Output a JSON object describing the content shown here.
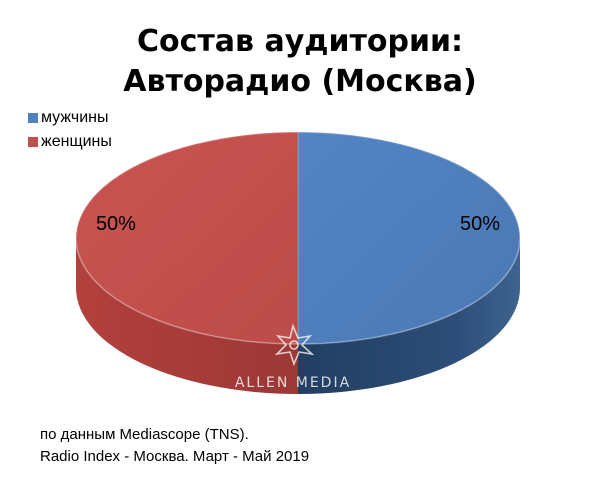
{
  "chart_data": {
    "type": "pie",
    "title_lines": [
      "Состав аудитории:",
      "Авторадио (Москва)"
    ],
    "categories": [
      "мужчины",
      "женщины"
    ],
    "values": [
      50,
      50
    ],
    "data_labels": [
      "50%",
      "50%"
    ],
    "colors": [
      "#4f81bd",
      "#c0504d"
    ],
    "legend_position": "top-left",
    "style": "3d"
  },
  "watermark": {
    "text": "ALLEN MEDIA",
    "icon": "star-burst-icon"
  },
  "source": {
    "line1": "по данным Mediascope (TNS).",
    "line2": "Radio Index - Москва. Март - Май 2019"
  }
}
